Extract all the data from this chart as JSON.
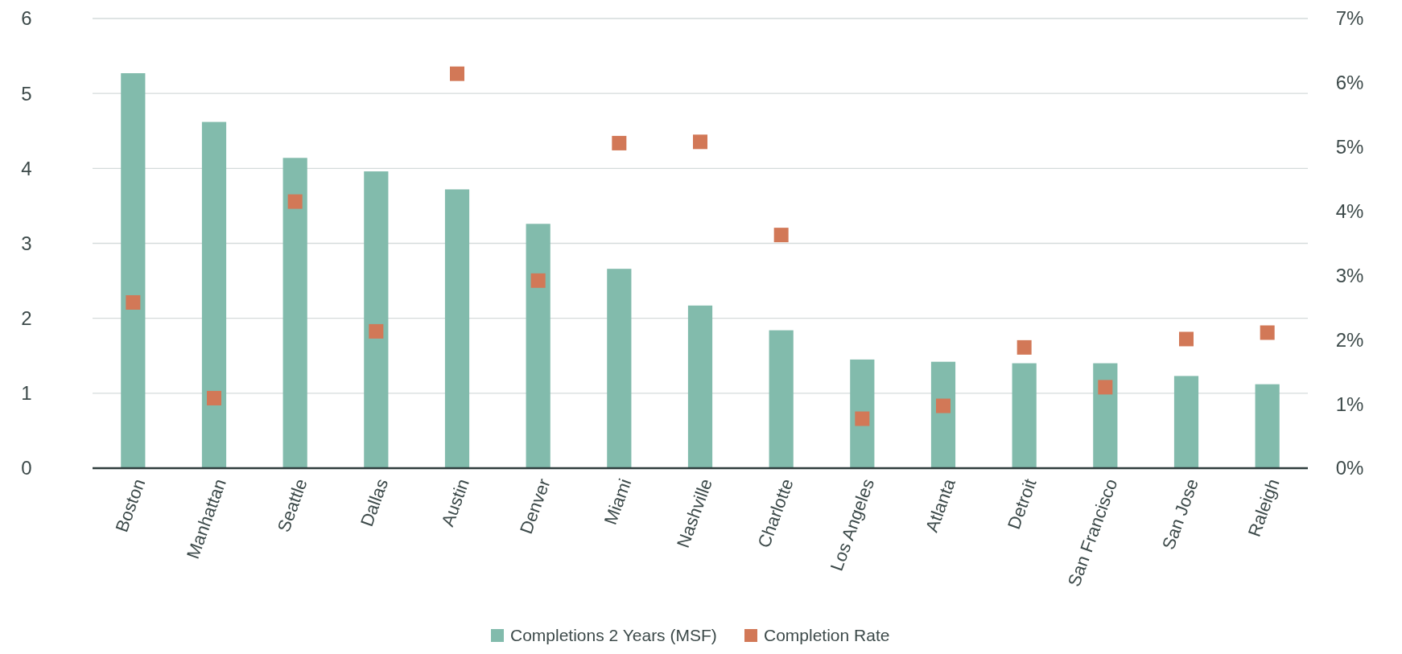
{
  "chart_data": {
    "type": "bar",
    "categories": [
      "Boston",
      "Manhattan",
      "Seattle",
      "Dallas",
      "Austin",
      "Denver",
      "Miami",
      "Nashville",
      "Charlotte",
      "Los Angeles",
      "Atlanta",
      "Detroit",
      "San Francisco",
      "San Jose",
      "Raleigh"
    ],
    "series": [
      {
        "name": "Completions 2 Years (MSF)",
        "color": "#82bbac",
        "values": [
          5.27,
          4.62,
          4.14,
          3.96,
          3.72,
          3.26,
          2.66,
          2.17,
          1.84,
          1.45,
          1.42,
          1.4,
          1.4,
          1.23,
          1.12
        ]
      },
      {
        "name": "Completion Rate",
        "type": "scatter",
        "axis": "y2",
        "marker": "square",
        "color": "#d27857",
        "values": [
          2.58,
          1.09,
          4.15,
          2.13,
          6.14,
          2.92,
          5.06,
          5.08,
          3.63,
          0.77,
          0.97,
          1.88,
          1.26,
          2.01,
          2.11
        ]
      }
    ],
    "ylim": [
      0,
      6
    ],
    "yticks": [
      0,
      1,
      2,
      3,
      4,
      5,
      6
    ],
    "y2lim": [
      0,
      7
    ],
    "y2ticks": [
      {
        "value": 0,
        "label": "0%"
      },
      {
        "value": 1,
        "label": "1%"
      },
      {
        "value": 2,
        "label": "2%"
      },
      {
        "value": 3,
        "label": "3%"
      },
      {
        "value": 4,
        "label": "4%"
      },
      {
        "value": 5,
        "label": "5%"
      },
      {
        "value": 6,
        "label": "6%"
      },
      {
        "value": 7,
        "label": "7%"
      }
    ],
    "grid": "y",
    "legend": "bottom"
  }
}
